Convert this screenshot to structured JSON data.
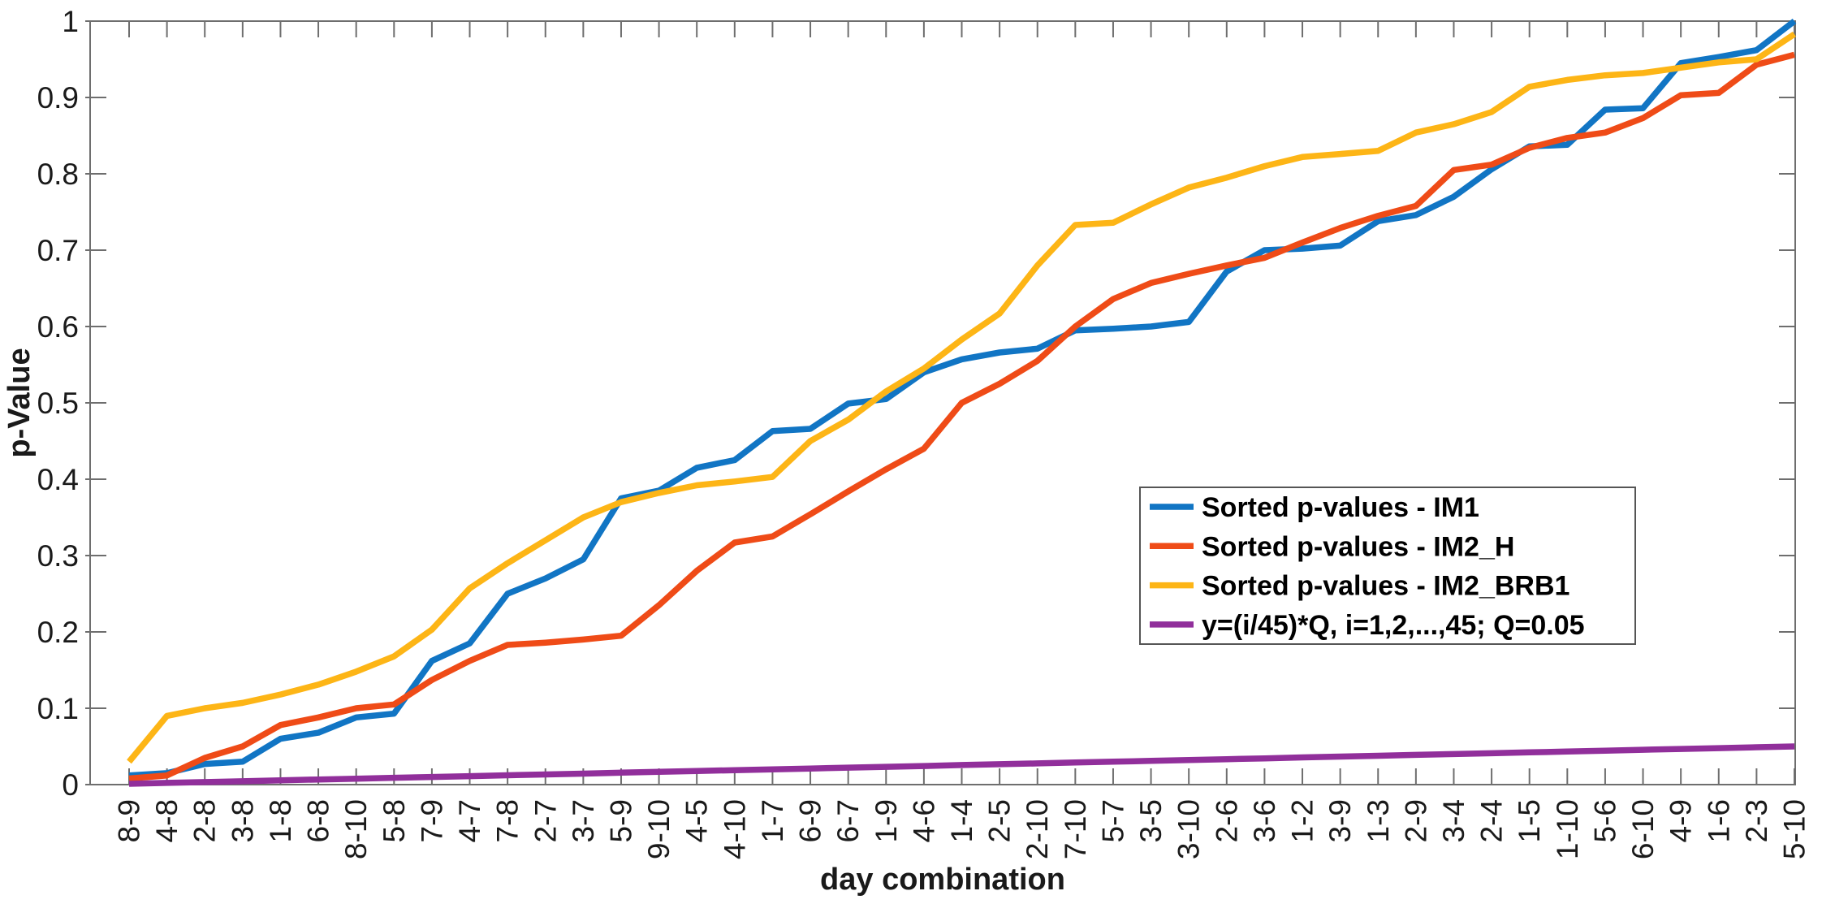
{
  "chart_data": {
    "type": "line",
    "title": "",
    "xlabel": "day combination",
    "ylabel": "p-Value",
    "ylim": [
      0,
      1
    ],
    "ytick_values": [
      0,
      0.1,
      0.2,
      0.3,
      0.4,
      0.5,
      0.6,
      0.7,
      0.8,
      0.9,
      1
    ],
    "ytick_labels": [
      "0",
      "0.1",
      "0.2",
      "0.3",
      "0.4",
      "0.5",
      "0.6",
      "0.7",
      "0.8",
      "0.9",
      "1"
    ],
    "grid": false,
    "legend_position": "inside-middle-right",
    "categories": [
      "8-9",
      "4-8",
      "2-8",
      "3-8",
      "1-8",
      "6-8",
      "8-10",
      "5-8",
      "7-9",
      "4-7",
      "7-8",
      "2-7",
      "3-7",
      "5-9",
      "9-10",
      "4-5",
      "4-10",
      "1-7",
      "6-9",
      "6-7",
      "1-9",
      "4-6",
      "1-4",
      "2-5",
      "2-10",
      "7-10",
      "5-7",
      "3-5",
      "3-10",
      "2-6",
      "3-6",
      "1-2",
      "3-9",
      "1-3",
      "2-9",
      "3-4",
      "2-4",
      "1-5",
      "1-10",
      "5-6",
      "6-10",
      "4-9",
      "1-6",
      "2-3",
      "5-10"
    ],
    "series": [
      {
        "name": "Sorted p-values - IM1",
        "color": "#1175c4",
        "values": [
          0.012,
          0.015,
          0.027,
          0.03,
          0.06,
          0.068,
          0.088,
          0.093,
          0.162,
          0.185,
          0.25,
          0.27,
          0.295,
          0.375,
          0.385,
          0.415,
          0.425,
          0.463,
          0.466,
          0.499,
          0.505,
          0.54,
          0.557,
          0.566,
          0.571,
          0.595,
          0.597,
          0.6,
          0.606,
          0.672,
          0.7,
          0.702,
          0.706,
          0.738,
          0.746,
          0.77,
          0.806,
          0.836,
          0.838,
          0.884,
          0.886,
          0.945,
          0.953,
          0.962,
          1.0
        ]
      },
      {
        "name": "Sorted p-values - IM2_H",
        "color": "#ef4b17",
        "values": [
          0.008,
          0.012,
          0.035,
          0.05,
          0.078,
          0.088,
          0.1,
          0.105,
          0.137,
          0.162,
          0.183,
          0.186,
          0.19,
          0.195,
          0.235,
          0.28,
          0.317,
          0.325,
          0.354,
          0.384,
          0.413,
          0.44,
          0.5,
          0.525,
          0.555,
          0.6,
          0.636,
          0.657,
          0.669,
          0.68,
          0.69,
          0.71,
          0.729,
          0.745,
          0.758,
          0.805,
          0.812,
          0.834,
          0.847,
          0.854,
          0.873,
          0.903,
          0.906,
          0.943,
          0.956
        ]
      },
      {
        "name": "Sorted p-values - IM2_BRB1",
        "color": "#fdb516",
        "values": [
          0.03,
          0.09,
          0.1,
          0.107,
          0.118,
          0.131,
          0.148,
          0.168,
          0.203,
          0.257,
          0.29,
          0.32,
          0.35,
          0.37,
          0.382,
          0.392,
          0.397,
          0.403,
          0.45,
          0.478,
          0.515,
          0.545,
          0.583,
          0.617,
          0.68,
          0.733,
          0.736,
          0.76,
          0.782,
          0.795,
          0.81,
          0.822,
          0.826,
          0.83,
          0.854,
          0.865,
          0.881,
          0.914,
          0.923,
          0.929,
          0.932,
          0.939,
          0.946,
          0.95,
          0.983
        ]
      },
      {
        "name": "y=(i/45)*Q, i=1,2,...,45; Q=0.05",
        "color": "#912f9b",
        "values": [
          0.0011,
          0.0022,
          0.0033,
          0.0044,
          0.0056,
          0.0067,
          0.0078,
          0.0089,
          0.01,
          0.0111,
          0.0122,
          0.0133,
          0.0144,
          0.0156,
          0.0167,
          0.0178,
          0.0189,
          0.02,
          0.0211,
          0.0222,
          0.0233,
          0.0244,
          0.0256,
          0.0267,
          0.0278,
          0.0289,
          0.03,
          0.0311,
          0.0322,
          0.0333,
          0.0344,
          0.0356,
          0.0367,
          0.0378,
          0.0389,
          0.04,
          0.0411,
          0.0422,
          0.0433,
          0.0444,
          0.0456,
          0.0467,
          0.0478,
          0.0489,
          0.05
        ]
      }
    ],
    "axis_color": "#6e6e6e",
    "text_color": "#1a1a1a",
    "legend_border_color": "#555555",
    "legend_background": "#ffffff"
  }
}
